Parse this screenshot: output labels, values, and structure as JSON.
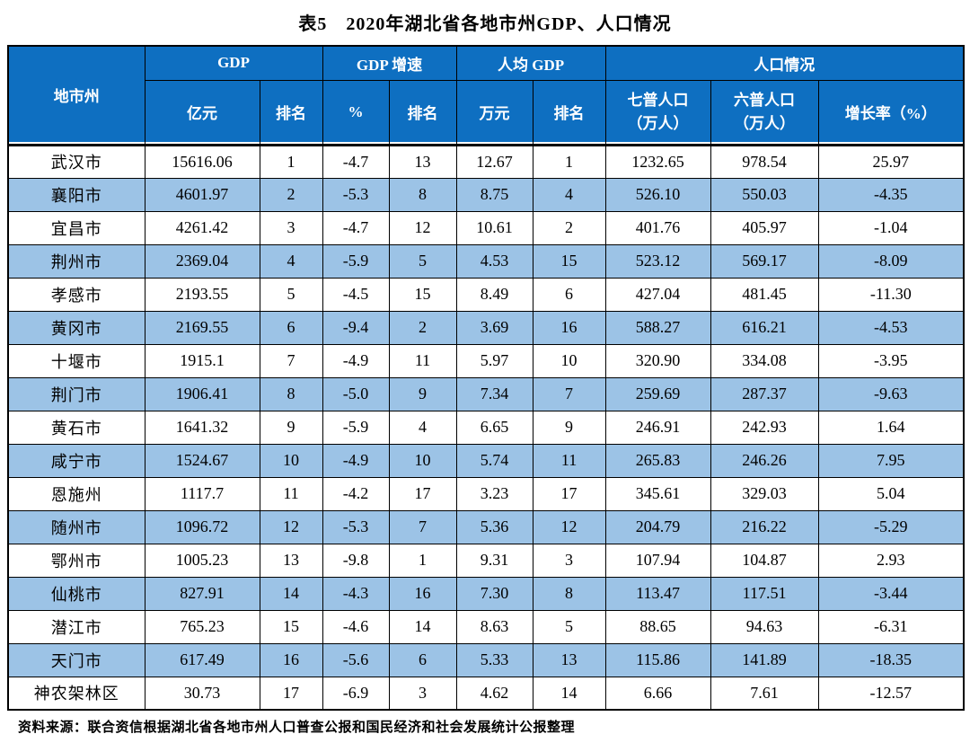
{
  "title": "表5　2020年湖北省各地市州GDP、人口情况",
  "source_note": "资料来源：联合资信根据湖北省各地市州人口普查公报和国民经济和社会发展统计公报整理",
  "colors": {
    "header_bg": "#0E6FC1",
    "alt_row_bg": "#9CC3E6",
    "header_text": "#FFFFFF",
    "body_text": "#000000",
    "border": "#000000"
  },
  "table": {
    "group_headers": {
      "region": "地市州",
      "gdp": "GDP",
      "gdp_growth": "GDP 增速",
      "gdp_per_capita": "人均 GDP",
      "population": "人口情况"
    },
    "sub_headers": {
      "gdp_value": "亿元",
      "gdp_rank": "排名",
      "growth_pct": "%",
      "growth_rank": "排名",
      "pc_value": "万元",
      "pc_rank": "排名",
      "census7": "七普人口\n（万人）",
      "census6": "六普人口\n（万人）",
      "growth_rate": "增长率（%）"
    },
    "rows": [
      [
        "武汉市",
        "15616.06",
        "1",
        "-4.7",
        "13",
        "12.67",
        "1",
        "1232.65",
        "978.54",
        "25.97"
      ],
      [
        "襄阳市",
        "4601.97",
        "2",
        "-5.3",
        "8",
        "8.75",
        "4",
        "526.10",
        "550.03",
        "-4.35"
      ],
      [
        "宜昌市",
        "4261.42",
        "3",
        "-4.7",
        "12",
        "10.61",
        "2",
        "401.76",
        "405.97",
        "-1.04"
      ],
      [
        "荆州市",
        "2369.04",
        "4",
        "-5.9",
        "5",
        "4.53",
        "15",
        "523.12",
        "569.17",
        "-8.09"
      ],
      [
        "孝感市",
        "2193.55",
        "5",
        "-4.5",
        "15",
        "8.49",
        "6",
        "427.04",
        "481.45",
        "-11.30"
      ],
      [
        "黄冈市",
        "2169.55",
        "6",
        "-9.4",
        "2",
        "3.69",
        "16",
        "588.27",
        "616.21",
        "-4.53"
      ],
      [
        "十堰市",
        "1915.1",
        "7",
        "-4.9",
        "11",
        "5.97",
        "10",
        "320.90",
        "334.08",
        "-3.95"
      ],
      [
        "荆门市",
        "1906.41",
        "8",
        "-5.0",
        "9",
        "7.34",
        "7",
        "259.69",
        "287.37",
        "-9.63"
      ],
      [
        "黄石市",
        "1641.32",
        "9",
        "-5.9",
        "4",
        "6.65",
        "9",
        "246.91",
        "242.93",
        "1.64"
      ],
      [
        "咸宁市",
        "1524.67",
        "10",
        "-4.9",
        "10",
        "5.74",
        "11",
        "265.83",
        "246.26",
        "7.95"
      ],
      [
        "恩施州",
        "1117.7",
        "11",
        "-4.2",
        "17",
        "3.23",
        "17",
        "345.61",
        "329.03",
        "5.04"
      ],
      [
        "随州市",
        "1096.72",
        "12",
        "-5.3",
        "7",
        "5.36",
        "12",
        "204.79",
        "216.22",
        "-5.29"
      ],
      [
        "鄂州市",
        "1005.23",
        "13",
        "-9.8",
        "1",
        "9.31",
        "3",
        "107.94",
        "104.87",
        "2.93"
      ],
      [
        "仙桃市",
        "827.91",
        "14",
        "-4.3",
        "16",
        "7.30",
        "8",
        "113.47",
        "117.51",
        "-3.44"
      ],
      [
        "潜江市",
        "765.23",
        "15",
        "-4.6",
        "14",
        "8.63",
        "5",
        "88.65",
        "94.63",
        "-6.31"
      ],
      [
        "天门市",
        "617.49",
        "16",
        "-5.6",
        "6",
        "5.33",
        "13",
        "115.86",
        "141.89",
        "-18.35"
      ],
      [
        "神农架林区",
        "30.73",
        "17",
        "-6.9",
        "3",
        "4.62",
        "14",
        "6.66",
        "7.61",
        "-12.57"
      ]
    ]
  }
}
